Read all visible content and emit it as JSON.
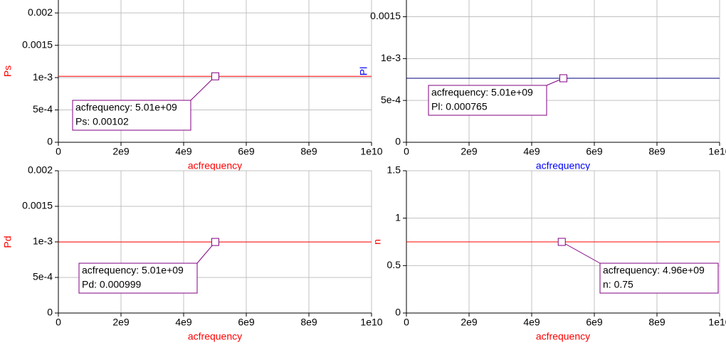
{
  "chart_data": [
    {
      "type": "line",
      "y_label": "Ps",
      "x_label": "acfrequency",
      "axis_label_color": "#ff0000",
      "grid": true,
      "xlim": [
        0,
        10000000000
      ],
      "ylim": [
        0,
        0.0022
      ],
      "xticks": [
        0,
        {
          "value": 2000000000,
          "label": "2e9"
        },
        {
          "value": 4000000000,
          "label": "4e9"
        },
        {
          "value": 6000000000,
          "label": "6e9"
        },
        {
          "value": 8000000000,
          "label": "8e9"
        },
        {
          "value": 10000000000,
          "label": "1e10"
        }
      ],
      "yticks": [
        0,
        {
          "value": 0.0005,
          "label": "5e-4"
        },
        {
          "value": 0.001,
          "label": "1e-3"
        },
        0.0015,
        0.002
      ],
      "series": [
        {
          "name": "Ps",
          "color": "#ff0000",
          "x": [
            0,
            10000000000
          ],
          "values": [
            0.00102,
            0.00102
          ]
        }
      ],
      "cursor": {
        "x": 5010000000,
        "y": 0.00102
      },
      "annotation": [
        "acfrequency: 5.01e+09",
        "Ps: 0.00102"
      ]
    },
    {
      "type": "line",
      "y_label": "Pl",
      "x_label": "acfrequency",
      "axis_label_color": "#0000ff",
      "grid": true,
      "xlim": [
        0,
        10000000000
      ],
      "ylim": [
        0,
        0.0017
      ],
      "xticks": [
        0,
        {
          "value": 2000000000,
          "label": "2e9"
        },
        {
          "value": 4000000000,
          "label": "4e9"
        },
        {
          "value": 6000000000,
          "label": "6e9"
        },
        {
          "value": 8000000000,
          "label": "8e9"
        },
        {
          "value": 10000000000,
          "label": "1e10"
        }
      ],
      "yticks": [
        0,
        {
          "value": 0.0005,
          "label": "5e-4"
        },
        {
          "value": 0.001,
          "label": "1e-3"
        },
        0.0015
      ],
      "series": [
        {
          "name": "Pl",
          "color": "#000080",
          "x": [
            0,
            10000000000
          ],
          "values": [
            0.000765,
            0.000765
          ]
        }
      ],
      "cursor": {
        "x": 5010000000,
        "y": 0.000765
      },
      "annotation": [
        "acfrequency: 5.01e+09",
        "Pl: 0.000765"
      ]
    },
    {
      "type": "line",
      "y_label": "Pd",
      "x_label": "acfrequency",
      "axis_label_color": "#ff0000",
      "grid": true,
      "xlim": [
        0,
        10000000000
      ],
      "ylim": [
        0,
        0.002
      ],
      "xticks": [
        0,
        {
          "value": 2000000000,
          "label": "2e9"
        },
        {
          "value": 4000000000,
          "label": "4e9"
        },
        {
          "value": 6000000000,
          "label": "6e9"
        },
        {
          "value": 8000000000,
          "label": "8e9"
        },
        {
          "value": 10000000000,
          "label": "1e10"
        }
      ],
      "yticks": [
        0,
        {
          "value": 0.0005,
          "label": "5e-4"
        },
        {
          "value": 0.001,
          "label": "1e-3"
        },
        0.0015,
        0.002
      ],
      "series": [
        {
          "name": "Pd",
          "color": "#ff0000",
          "x": [
            0,
            10000000000
          ],
          "values": [
            0.000999,
            0.000999
          ]
        }
      ],
      "cursor": {
        "x": 5010000000,
        "y": 0.000999
      },
      "annotation": [
        "acfrequency: 5.01e+09",
        "Pd: 0.000999"
      ]
    },
    {
      "type": "line",
      "y_label": "n",
      "x_label": "acfrequency",
      "axis_label_color": "#ff0000",
      "grid": true,
      "xlim": [
        0,
        10000000000
      ],
      "ylim": [
        0,
        1.5
      ],
      "xticks": [
        0,
        {
          "value": 2000000000,
          "label": "2e9"
        },
        {
          "value": 4000000000,
          "label": "4e9"
        },
        {
          "value": 6000000000,
          "label": "6e9"
        },
        {
          "value": 8000000000,
          "label": "8e9"
        },
        {
          "value": 10000000000,
          "label": "1e10"
        }
      ],
      "yticks": [
        0,
        0.5,
        1,
        1.5
      ],
      "series": [
        {
          "name": "n",
          "color": "#ff0000",
          "x": [
            0,
            10000000000
          ],
          "values": [
            0.75,
            0.75
          ]
        }
      ],
      "cursor": {
        "x": 4960000000,
        "y": 0.75
      },
      "annotation": [
        "acfrequency: 4.96e+09",
        "n: 0.75"
      ]
    }
  ]
}
